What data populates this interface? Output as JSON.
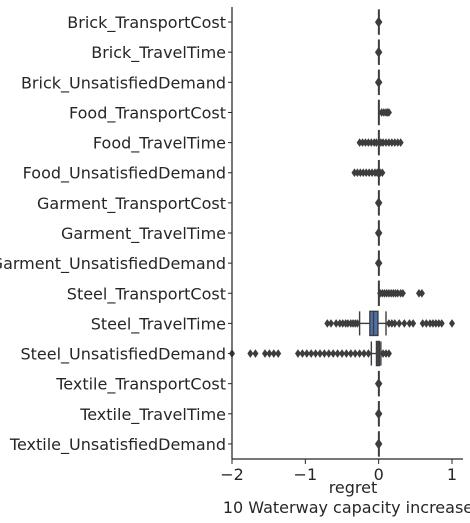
{
  "chart_data": {
    "type": "boxplot",
    "orientation": "horizontal",
    "categories": [
      "Brick_TransportCost",
      "Brick_TravelTime",
      "Brick_UnsatisfiedDemand",
      "Food_TransportCost",
      "Food_TravelTime",
      "Food_UnsatisfiedDemand",
      "Garment_TransportCost",
      "Garment_TravelTime",
      "Garment_UnsatisfiedDemand",
      "Steel_TransportCost",
      "Steel_TravelTime",
      "Steel_UnsatisfiedDemand",
      "Textile_TransportCost",
      "Textile_TravelTime",
      "Textile_UnsatisfiedDemand"
    ],
    "xlabel": "regret",
    "subtitle": "10 Waterway capacity increase",
    "xlim": [
      -2,
      1.15
    ],
    "xticks": [
      -2,
      -1,
      0,
      1
    ],
    "xtick_labels": [
      "−2",
      "−1",
      "0",
      "1"
    ],
    "grid": false,
    "box_color": "#4c72b0",
    "line_color": "#3d3d3d",
    "boxes": [
      {
        "q1": 0,
        "median": 0,
        "q3": 0,
        "wlo": 0,
        "whi": 0,
        "outliers": [
          -0.01,
          0.01
        ]
      },
      {
        "q1": 0,
        "median": 0,
        "q3": 0,
        "wlo": 0,
        "whi": 0,
        "outliers": [
          -0.01,
          0.01
        ]
      },
      {
        "q1": 0,
        "median": 0,
        "q3": 0,
        "wlo": 0,
        "whi": 0,
        "outliers": [
          -0.01,
          0.01
        ]
      },
      {
        "q1": 0,
        "median": 0,
        "q3": 0,
        "wlo": 0,
        "whi": 0,
        "outliers": [
          0.04,
          0.07,
          0.1,
          0.12,
          0.14
        ]
      },
      {
        "q1": 0,
        "median": 0,
        "q3": 0,
        "wlo": 0,
        "whi": 0,
        "outliers": [
          -0.26,
          -0.22,
          -0.18,
          -0.14,
          -0.1,
          -0.06,
          -0.03,
          0.03,
          0.06,
          0.1,
          0.14,
          0.18,
          0.22,
          0.26,
          0.3
        ]
      },
      {
        "q1": 0,
        "median": 0,
        "q3": 0,
        "wlo": 0,
        "whi": 0,
        "outliers": [
          -0.33,
          -0.29,
          -0.25,
          -0.21,
          -0.17,
          -0.13,
          -0.09,
          -0.05,
          -0.02,
          0.02,
          0.05
        ]
      },
      {
        "q1": 0,
        "median": 0,
        "q3": 0,
        "wlo": 0,
        "whi": 0,
        "outliers": [
          -0.01,
          0.01
        ]
      },
      {
        "q1": 0,
        "median": 0,
        "q3": 0,
        "wlo": 0,
        "whi": 0,
        "outliers": [
          -0.01,
          0.01
        ]
      },
      {
        "q1": 0,
        "median": 0,
        "q3": 0,
        "wlo": 0,
        "whi": 0,
        "outliers": [
          -0.01,
          0.01
        ]
      },
      {
        "q1": 0,
        "median": 0,
        "q3": 0,
        "wlo": 0,
        "whi": 0,
        "outliers": [
          0.02,
          0.05,
          0.08,
          0.11,
          0.14,
          0.17,
          0.2,
          0.23,
          0.26,
          0.3,
          0.33,
          0.55,
          0.59
        ]
      },
      {
        "q1": -0.12,
        "median": -0.07,
        "q3": -0.01,
        "wlo": -0.26,
        "whi": 0.1,
        "outliers": [
          -0.7,
          -0.65,
          -0.58,
          -0.53,
          -0.49,
          -0.45,
          -0.42,
          -0.38,
          -0.35,
          -0.32,
          -0.29,
          0.14,
          0.18,
          0.22,
          0.28,
          0.35,
          0.42,
          0.47,
          0.6,
          0.65,
          0.7,
          0.74,
          0.78,
          0.82,
          0.86,
          1.0
        ]
      },
      {
        "q1": -0.03,
        "median": -0.01,
        "q3": 0.01,
        "wlo": -0.1,
        "whi": 0.03,
        "outliers": [
          -2.0,
          -1.75,
          -1.68,
          -1.55,
          -1.49,
          -1.43,
          -1.37,
          -1.1,
          -1.04,
          -0.98,
          -0.92,
          -0.86,
          -0.8,
          -0.74,
          -0.68,
          -0.62,
          -0.56,
          -0.5,
          -0.44,
          -0.38,
          -0.32,
          -0.26,
          -0.2,
          -0.14,
          0.06,
          0.1,
          0.14
        ]
      },
      {
        "q1": 0,
        "median": 0,
        "q3": 0,
        "wlo": 0,
        "whi": 0,
        "outliers": [
          -0.01,
          0.01
        ]
      },
      {
        "q1": 0,
        "median": 0,
        "q3": 0,
        "wlo": 0,
        "whi": 0,
        "outliers": [
          -0.01,
          0.01
        ]
      },
      {
        "q1": 0,
        "median": 0,
        "q3": 0,
        "wlo": 0,
        "whi": 0,
        "outliers": [
          -0.01,
          0.01
        ]
      }
    ]
  }
}
